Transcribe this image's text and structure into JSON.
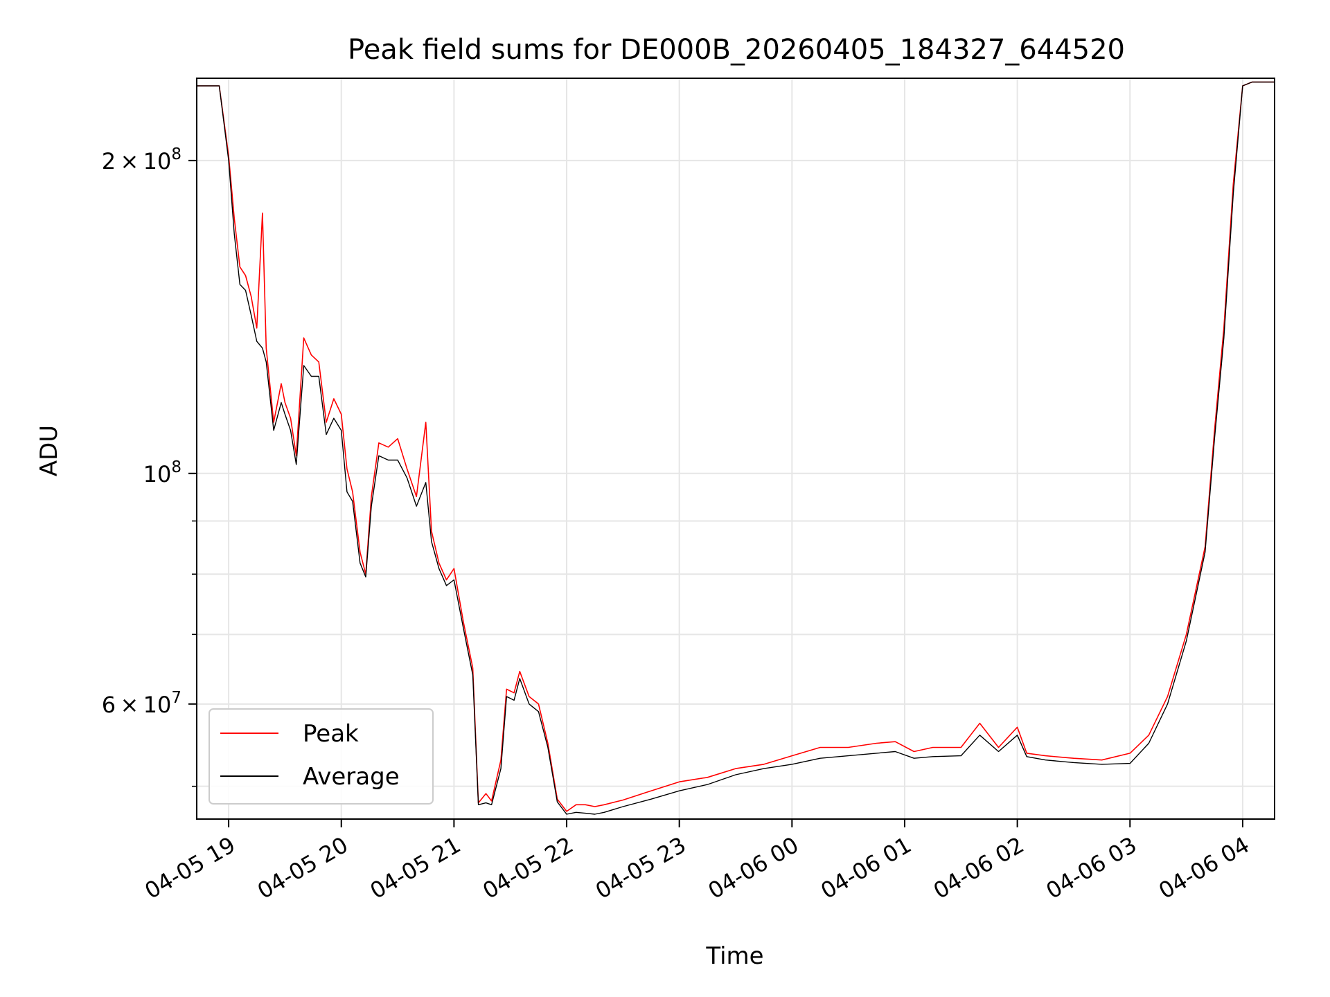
{
  "chart_data": {
    "type": "line",
    "title": "Peak field sums for DE000B_20260405_184327_644520",
    "xlabel": "Time",
    "ylabel": "ADU",
    "yscale": "log",
    "ylim": [
      46500000,
      240000000
    ],
    "xlim": [
      "04-05 18:43",
      "04-06 04:17"
    ],
    "grid": true,
    "legend_position": "lower-left",
    "x_ticks": [
      "04-05 19",
      "04-05 20",
      "04-05 21",
      "04-05 22",
      "04-05 23",
      "04-06 00",
      "04-06 01",
      "04-06 02",
      "04-06 03",
      "04-06 04"
    ],
    "y_major_ticks": [
      {
        "value": 200000000,
        "mantissa": "2",
        "exp": "8"
      },
      {
        "value": 100000000,
        "mantissa": "",
        "exp": "8"
      },
      {
        "value": 60000000,
        "mantissa": "6",
        "exp": "7"
      }
    ],
    "y_minor_ticks": [
      50000000,
      70000000,
      80000000,
      90000000
    ],
    "series": [
      {
        "name": "Peak",
        "color": "#ff0000",
        "x": [
          "04-05 18:43",
          "04-05 18:55",
          "04-05 19:00",
          "04-05 19:03",
          "04-05 19:06",
          "04-05 19:09",
          "04-05 19:12",
          "04-05 19:15",
          "04-05 19:18",
          "04-05 19:20",
          "04-05 19:24",
          "04-05 19:28",
          "04-05 19:30",
          "04-05 19:33",
          "04-05 19:36",
          "04-05 19:40",
          "04-05 19:44",
          "04-05 19:48",
          "04-05 19:52",
          "04-05 19:56",
          "04-05 20:00",
          "04-05 20:03",
          "04-05 20:06",
          "04-05 20:10",
          "04-05 20:13",
          "04-05 20:16",
          "04-05 20:20",
          "04-05 20:25",
          "04-05 20:30",
          "04-05 20:35",
          "04-05 20:40",
          "04-05 20:45",
          "04-05 20:48",
          "04-05 20:52",
          "04-05 20:56",
          "04-05 21:00",
          "04-05 21:05",
          "04-05 21:10",
          "04-05 21:13",
          "04-05 21:17",
          "04-05 21:20",
          "04-05 21:25",
          "04-05 21:28",
          "04-05 21:32",
          "04-05 21:35",
          "04-05 21:40",
          "04-05 21:45",
          "04-05 21:50",
          "04-05 21:55",
          "04-05 22:00",
          "04-05 22:05",
          "04-05 22:10",
          "04-05 22:15",
          "04-05 22:20",
          "04-05 22:30",
          "04-05 22:45",
          "04-05 23:00",
          "04-05 23:15",
          "04-05 23:30",
          "04-05 23:45",
          "04-06 00:00",
          "04-06 00:15",
          "04-06 00:30",
          "04-06 00:45",
          "04-06 00:55",
          "04-06 01:05",
          "04-06 01:15",
          "04-06 01:30",
          "04-06 01:40",
          "04-06 01:50",
          "04-06 02:00",
          "04-06 02:05",
          "04-06 02:15",
          "04-06 02:30",
          "04-06 02:45",
          "04-06 03:00",
          "04-06 03:10",
          "04-06 03:20",
          "04-06 03:30",
          "04-06 03:40",
          "04-06 03:45",
          "04-06 03:50",
          "04-06 03:55",
          "04-06 04:00",
          "04-06 04:05",
          "04-06 04:17"
        ],
        "y": [
          236000000,
          236000000,
          202000000,
          176000000,
          158000000,
          155000000,
          148000000,
          138000000,
          178000000,
          132000000,
          112000000,
          122000000,
          117000000,
          113000000,
          104000000,
          135000000,
          130000000,
          128000000,
          112000000,
          118000000,
          114000000,
          101000000,
          96000000,
          84000000,
          80000000,
          95000000,
          107000000,
          106000000,
          108000000,
          101000000,
          95000000,
          112000000,
          88000000,
          82000000,
          79000000,
          81000000,
          72000000,
          65000000,
          48200000,
          49200000,
          48400000,
          53000000,
          62000000,
          61500000,
          64500000,
          61000000,
          60000000,
          55000000,
          48600000,
          47300000,
          48000000,
          48000000,
          47800000,
          48000000,
          48500000,
          49500000,
          50500000,
          51000000,
          52000000,
          52500000,
          53500000,
          54500000,
          54500000,
          55000000,
          55200000,
          54000000,
          54500000,
          54500000,
          57500000,
          54500000,
          57000000,
          53800000,
          53500000,
          53200000,
          53000000,
          53800000,
          56000000,
          61000000,
          70000000,
          85000000,
          110000000,
          138000000,
          190000000,
          236000000,
          238000000,
          238000000
        ]
      },
      {
        "name": "Average",
        "color": "#000000",
        "x": [
          "04-05 18:43",
          "04-05 18:55",
          "04-05 19:00",
          "04-05 19:03",
          "04-05 19:06",
          "04-05 19:09",
          "04-05 19:12",
          "04-05 19:15",
          "04-05 19:18",
          "04-05 19:20",
          "04-05 19:24",
          "04-05 19:28",
          "04-05 19:30",
          "04-05 19:33",
          "04-05 19:36",
          "04-05 19:40",
          "04-05 19:44",
          "04-05 19:48",
          "04-05 19:52",
          "04-05 19:56",
          "04-05 20:00",
          "04-05 20:03",
          "04-05 20:06",
          "04-05 20:10",
          "04-05 20:13",
          "04-05 20:16",
          "04-05 20:20",
          "04-05 20:25",
          "04-05 20:30",
          "04-05 20:35",
          "04-05 20:40",
          "04-05 20:45",
          "04-05 20:48",
          "04-05 20:52",
          "04-05 20:56",
          "04-05 21:00",
          "04-05 21:05",
          "04-05 21:10",
          "04-05 21:13",
          "04-05 21:17",
          "04-05 21:20",
          "04-05 21:25",
          "04-05 21:28",
          "04-05 21:32",
          "04-05 21:35",
          "04-05 21:40",
          "04-05 21:45",
          "04-05 21:50",
          "04-05 21:55",
          "04-05 22:00",
          "04-05 22:05",
          "04-05 22:10",
          "04-05 22:15",
          "04-05 22:20",
          "04-05 22:30",
          "04-05 22:45",
          "04-05 23:00",
          "04-05 23:15",
          "04-05 23:30",
          "04-05 23:45",
          "04-06 00:00",
          "04-06 00:15",
          "04-06 00:30",
          "04-06 00:45",
          "04-06 00:55",
          "04-06 01:05",
          "04-06 01:15",
          "04-06 01:30",
          "04-06 01:40",
          "04-06 01:50",
          "04-06 02:00",
          "04-06 02:05",
          "04-06 02:15",
          "04-06 02:30",
          "04-06 02:45",
          "04-06 03:00",
          "04-06 03:10",
          "04-06 03:20",
          "04-06 03:30",
          "04-06 03:40",
          "04-06 03:45",
          "04-06 03:50",
          "04-06 03:55",
          "04-06 04:00",
          "04-06 04:05",
          "04-06 04:17"
        ],
        "y": [
          236000000,
          236000000,
          200000000,
          170000000,
          152000000,
          150000000,
          142000000,
          134000000,
          132000000,
          128000000,
          110000000,
          117000000,
          114000000,
          110000000,
          102000000,
          127000000,
          124000000,
          124000000,
          109000000,
          113000000,
          110000000,
          96000000,
          94000000,
          82000000,
          79500000,
          93000000,
          104000000,
          103000000,
          103000000,
          99000000,
          93000000,
          98000000,
          86000000,
          81000000,
          78000000,
          79000000,
          71000000,
          64000000,
          48000000,
          48200000,
          48000000,
          52000000,
          61000000,
          60500000,
          63500000,
          60000000,
          59000000,
          54500000,
          48300000,
          47000000,
          47200000,
          47100000,
          47000000,
          47200000,
          47800000,
          48600000,
          49500000,
          50200000,
          51300000,
          52000000,
          52500000,
          53200000,
          53500000,
          53800000,
          54000000,
          53200000,
          53400000,
          53500000,
          56000000,
          54000000,
          56000000,
          53400000,
          53000000,
          52700000,
          52500000,
          52600000,
          55000000,
          60000000,
          69000000,
          84000000,
          108000000,
          135000000,
          186000000,
          236000000,
          238000000,
          238000000
        ]
      }
    ]
  }
}
